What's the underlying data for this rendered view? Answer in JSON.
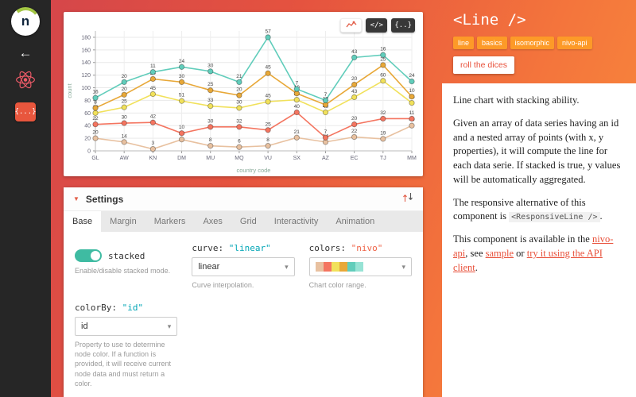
{
  "sidebar": {
    "logo_letter": "n",
    "back_icon": "←",
    "data_icon": "{...}"
  },
  "chart_card": {
    "buttons": {
      "code": "</>",
      "data": "{..}"
    }
  },
  "chart_data": {
    "type": "line",
    "stacked": true,
    "xlabel": "country code",
    "ylabel": "count",
    "ylim": [
      0,
      190
    ],
    "yticks": [
      0,
      20,
      40,
      60,
      80,
      100,
      120,
      140,
      160,
      180
    ],
    "grid": true,
    "legend_position": "none",
    "categories": [
      "GL",
      "AW",
      "KN",
      "DM",
      "MU",
      "MQ",
      "VU",
      "SX",
      "AZ",
      "EC",
      "TJ",
      "MM"
    ],
    "series": [
      {
        "name": "serie-0",
        "color": "#e8c1a0",
        "values": [
          20,
          14,
          3,
          18,
          8,
          6,
          8,
          21,
          14,
          22,
          19,
          40
        ]
      },
      {
        "name": "serie-1",
        "color": "#f47560",
        "values": [
          22,
          30,
          42,
          10,
          30,
          32,
          25,
          40,
          7,
          20,
          32,
          11
        ]
      },
      {
        "name": "serie-2",
        "color": "#f1e15b",
        "values": [
          18,
          25,
          45,
          51,
          33,
          30,
          45,
          20,
          40,
          43,
          60,
          25
        ]
      },
      {
        "name": "serie-3",
        "color": "#e8a838",
        "values": [
          8,
          20,
          24,
          30,
          25,
          20,
          45,
          10,
          12,
          20,
          25,
          10
        ]
      },
      {
        "name": "serie-4",
        "color": "#61cdbb",
        "values": [
          16,
          20,
          11,
          24,
          30,
          21,
          57,
          7,
          7,
          43,
          16,
          24
        ]
      }
    ]
  },
  "settings": {
    "collapse_icon": "▼",
    "header": "Settings",
    "tabs": [
      "Base",
      "Margin",
      "Markers",
      "Axes",
      "Grid",
      "Interactivity",
      "Animation"
    ],
    "active_tab": "Base",
    "controls": {
      "stacked": {
        "label": "stacked",
        "value": true,
        "help": "Enable/disable stacked mode."
      },
      "curve": {
        "label": "curve:",
        "value_code": "\"linear\"",
        "selected": "linear",
        "help": "Curve interpolation."
      },
      "colors": {
        "label": "colors:",
        "value_code": "\"nivo\"",
        "selected": "nivo",
        "help": "Chart color range.",
        "swatch": [
          "#e8c1a0",
          "#f47560",
          "#f1e15b",
          "#e8a838",
          "#61cdbb",
          "#97e3d5"
        ]
      },
      "colorBy": {
        "label": "colorBy:",
        "value_code": "\"id\"",
        "selected": "id",
        "help": "Property to use to determine node color. If a function is provided, it will receive current node data and must return a color."
      }
    }
  },
  "doc": {
    "title": "<Line />",
    "tags": [
      "line",
      "basics",
      "isomorphic",
      "nivo-api"
    ],
    "roll_button": "roll the dices",
    "p1": "Line chart with stacking ability.",
    "p2": "Given an array of data series having an id and a nested array of points (with x, y properties), it will compute the line for each data serie.  If stacked is true, y values will be automatically aggregated.",
    "p3_prefix": "The responsive alternative of this component is ",
    "p3_code": "<ResponsiveLine />",
    "p3_suffix": ".",
    "p4": {
      "t1": "This component is available in the ",
      "l1": "nivo-api",
      "t2": ", see ",
      "l2": "sample",
      "t3": " or ",
      "l3": "try it using the API client",
      "t4": "."
    }
  },
  "colors": {
    "accent": "#e25d47",
    "toggle_on": "#3fbba2",
    "tag_bg": "#fd9a28",
    "gradient_start": "#d2444c",
    "gradient_end": "#f98f3d"
  }
}
